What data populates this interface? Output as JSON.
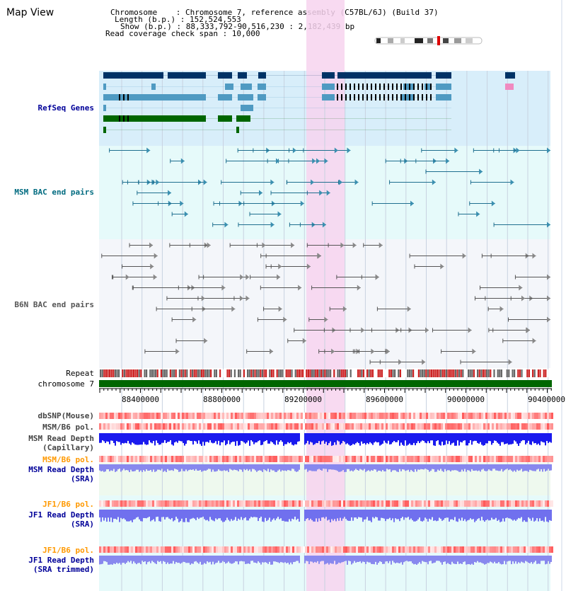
{
  "title": "Map View",
  "info": {
    "chromosome": "Chromosome    : Chromosome 7, reference assembly (C57BL/6J) (Build 37)",
    "length": "Length (b.p.) : 152,524,553",
    "show": "Show (b.p.) : 88,333,792-90,516,230 : 2,182,439 bp",
    "span": "Read coverage check span : 10,000"
  },
  "tracks": {
    "refseq": "RefSeq Genes",
    "msm_bac": "MSM BAC end pairs",
    "b6n_bac": "B6N BAC end pairs",
    "repeat": "Repeat",
    "chromosome": "chromosome 7",
    "dbsnp": "dbSNP(Mouse)",
    "msm_b6_pol_1": "MSM/B6 pol.",
    "msm_depth_cap_1": "MSM Read Depth",
    "msm_depth_cap_2": "(Capillary)",
    "msm_b6_pol_2": "MSM/B6 pol.",
    "msm_depth_sra_1": "MSM Read Depth",
    "msm_depth_sra_2": "(SRA)",
    "jf1_b6_pol_1": "JF1/B6 pol.",
    "jf1_depth_sra_1": "JF1 Read Depth",
    "jf1_depth_sra_2": "(SRA)",
    "jf1_b6_pol_2": "JF1/B6 pol.",
    "jf1_depth_trim_1": "JF1 Read Depth",
    "jf1_depth_trim_2": "(SRA trimmed)"
  },
  "axis_ticks": [
    "88400000",
    "88800000",
    "89200000",
    "89600000",
    "90000000",
    "90400000"
  ],
  "colors": {
    "refseq_bg": "#d8eefa",
    "msm_bg": "#e6fafa",
    "b6n_bg": "#f4f6fa",
    "highlight": "#f7d4ee",
    "chromosome_bar": "#006600",
    "gene_dark": "#003366",
    "gene_mid": "#4f9ac2",
    "gene_green": "#006600",
    "msm_pair": "#1f6f8f",
    "b6n_pair": "#555555",
    "label_blue": "#000099",
    "label_teal": "#006b80",
    "label_orange": "#ff9900",
    "label_grey": "#444444"
  }
}
